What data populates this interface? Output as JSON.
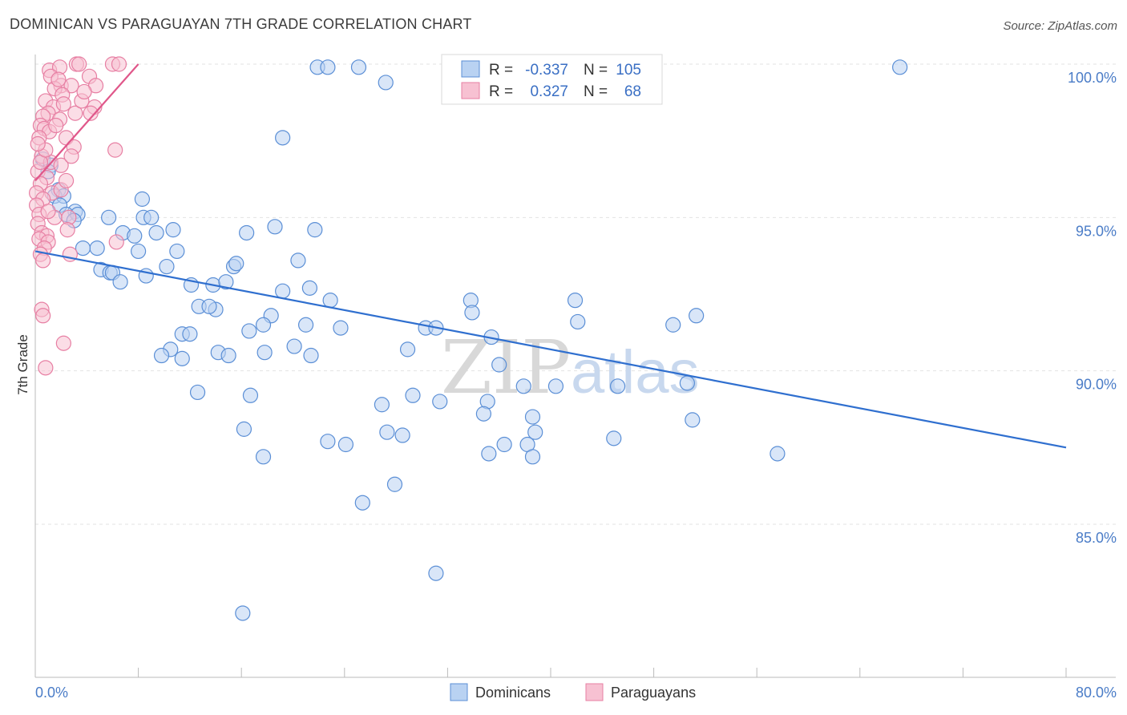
{
  "title": "DOMINICAN VS PARAGUAYAN 7TH GRADE CORRELATION CHART",
  "source": "Source: ZipAtlas.com",
  "colors": {
    "blue_fill": "#b9d2f2",
    "blue_stroke": "#5b8fd6",
    "blue_line": "#2f6fcf",
    "pink_fill": "#f7c1d2",
    "pink_stroke": "#e77fa3",
    "pink_line": "#e0578a",
    "grid": "#e3e3e3",
    "axis_label": "#4a7cc7"
  },
  "legend": {
    "row1": {
      "r_label": "R =",
      "r_value": "-0.337",
      "n_label": "N =",
      "n_value": "105"
    },
    "row2": {
      "r_label": "R =",
      "r_value": "0.327",
      "n_label": "N =",
      "n_value": "68"
    }
  },
  "bottom_legend": {
    "series1": "Dominicans",
    "series2": "Paraguayans"
  },
  "watermark": {
    "zip": "ZIP",
    "atlas": "atlas"
  },
  "chart_data": {
    "type": "scatter",
    "title": "DOMINICAN VS PARAGUAYAN 7TH GRADE CORRELATION CHART",
    "xlabel": "",
    "ylabel": "7th Grade",
    "xlim": [
      0,
      80
    ],
    "ylim": [
      80.5,
      101.0
    ],
    "x_tick_labels": [
      {
        "value": 0,
        "label": "0.0%"
      },
      {
        "value": 80,
        "label": "80.0%"
      }
    ],
    "y_tick_labels": [
      {
        "value": 100,
        "label": "100.0%"
      },
      {
        "value": 95,
        "label": "95.0%"
      },
      {
        "value": 90,
        "label": "90.0%"
      },
      {
        "value": 85,
        "label": "85.0%"
      }
    ],
    "grid": true,
    "legend_position": "top-center",
    "series": [
      {
        "name": "Dominicans",
        "r": -0.337,
        "n": 105,
        "trend": {
          "x0": 0,
          "y0": 93.9,
          "x1": 80,
          "y1": 87.5
        },
        "points": [
          [
            0.6,
            96.9
          ],
          [
            1.2,
            96.7
          ],
          [
            1.0,
            96.5
          ],
          [
            1.8,
            95.9
          ],
          [
            1.5,
            95.7
          ],
          [
            2.2,
            95.7
          ],
          [
            1.9,
            95.4
          ],
          [
            3.1,
            95.2
          ],
          [
            2.4,
            95.1
          ],
          [
            3.3,
            95.1
          ],
          [
            3.0,
            94.9
          ],
          [
            5.7,
            95.0
          ],
          [
            8.4,
            95.0
          ],
          [
            9.0,
            95.0
          ],
          [
            8.3,
            95.6
          ],
          [
            6.8,
            94.5
          ],
          [
            7.7,
            94.4
          ],
          [
            10.7,
            94.6
          ],
          [
            9.4,
            94.5
          ],
          [
            4.8,
            94.0
          ],
          [
            3.7,
            94.0
          ],
          [
            8.0,
            93.9
          ],
          [
            11.0,
            93.9
          ],
          [
            5.1,
            93.3
          ],
          [
            5.8,
            93.2
          ],
          [
            6.0,
            93.2
          ],
          [
            10.2,
            93.4
          ],
          [
            6.6,
            92.9
          ],
          [
            8.6,
            93.1
          ],
          [
            12.1,
            92.8
          ],
          [
            13.8,
            92.8
          ],
          [
            12.7,
            92.1
          ],
          [
            14.0,
            92.0
          ],
          [
            13.5,
            92.1
          ],
          [
            14.8,
            92.9
          ],
          [
            15.4,
            93.4
          ],
          [
            15.6,
            93.5
          ],
          [
            16.4,
            94.5
          ],
          [
            18.6,
            94.7
          ],
          [
            21.7,
            94.6
          ],
          [
            21.3,
            92.7
          ],
          [
            19.2,
            92.6
          ],
          [
            22.9,
            92.3
          ],
          [
            20.4,
            93.6
          ],
          [
            23.7,
            91.4
          ],
          [
            21.0,
            91.5
          ],
          [
            18.3,
            91.8
          ],
          [
            17.7,
            91.5
          ],
          [
            16.6,
            91.3
          ],
          [
            11.4,
            91.2
          ],
          [
            12.0,
            91.2
          ],
          [
            10.5,
            90.7
          ],
          [
            9.8,
            90.5
          ],
          [
            11.4,
            90.4
          ],
          [
            14.2,
            90.6
          ],
          [
            15.0,
            90.5
          ],
          [
            17.8,
            90.6
          ],
          [
            20.1,
            90.8
          ],
          [
            21.4,
            90.5
          ],
          [
            28.9,
            90.7
          ],
          [
            30.3,
            91.4
          ],
          [
            31.1,
            91.4
          ],
          [
            33.8,
            92.3
          ],
          [
            33.9,
            91.9
          ],
          [
            35.4,
            91.1
          ],
          [
            36.0,
            90.2
          ],
          [
            41.9,
            92.3
          ],
          [
            42.1,
            91.6
          ],
          [
            49.5,
            91.5
          ],
          [
            51.3,
            91.8
          ],
          [
            50.6,
            89.6
          ],
          [
            45.2,
            89.5
          ],
          [
            40.4,
            89.5
          ],
          [
            35.1,
            89.0
          ],
          [
            34.8,
            88.6
          ],
          [
            31.4,
            89.0
          ],
          [
            29.3,
            89.2
          ],
          [
            26.9,
            88.9
          ],
          [
            27.3,
            88.0
          ],
          [
            28.5,
            87.9
          ],
          [
            24.1,
            87.6
          ],
          [
            22.7,
            87.7
          ],
          [
            17.7,
            87.2
          ],
          [
            16.2,
            88.1
          ],
          [
            16.7,
            89.2
          ],
          [
            12.6,
            89.3
          ],
          [
            27.9,
            86.3
          ],
          [
            25.4,
            85.7
          ],
          [
            31.1,
            83.4
          ],
          [
            16.1,
            82.1
          ],
          [
            37.9,
            89.5
          ],
          [
            38.6,
            88.5
          ],
          [
            38.8,
            88.0
          ],
          [
            38.2,
            87.6
          ],
          [
            38.6,
            87.2
          ],
          [
            36.4,
            87.6
          ],
          [
            35.2,
            87.3
          ],
          [
            44.9,
            87.8
          ],
          [
            51.0,
            88.4
          ],
          [
            57.6,
            87.3
          ],
          [
            19.2,
            97.6
          ],
          [
            21.9,
            99.9
          ],
          [
            22.7,
            99.9
          ],
          [
            25.1,
            99.9
          ],
          [
            27.2,
            99.4
          ],
          [
            67.1,
            99.9
          ]
        ]
      },
      {
        "name": "Paraguayans",
        "r": 0.327,
        "n": 68,
        "trend": {
          "x0": 0,
          "y0": 96.2,
          "x1": 8,
          "y1": 100.0
        },
        "points": [
          [
            1.1,
            99.8
          ],
          [
            1.9,
            99.9
          ],
          [
            3.2,
            100.0
          ],
          [
            3.4,
            100.0
          ],
          [
            6.0,
            100.0
          ],
          [
            6.5,
            100.0
          ],
          [
            1.2,
            99.6
          ],
          [
            2.0,
            99.3
          ],
          [
            2.8,
            99.3
          ],
          [
            4.2,
            99.6
          ],
          [
            4.7,
            99.3
          ],
          [
            1.5,
            99.2
          ],
          [
            2.1,
            99.0
          ],
          [
            0.8,
            98.8
          ],
          [
            1.4,
            98.6
          ],
          [
            2.2,
            98.7
          ],
          [
            4.6,
            98.6
          ],
          [
            4.3,
            98.4
          ],
          [
            1.0,
            98.4
          ],
          [
            0.6,
            98.3
          ],
          [
            1.9,
            98.2
          ],
          [
            3.1,
            98.4
          ],
          [
            0.4,
            98.0
          ],
          [
            0.7,
            97.9
          ],
          [
            1.1,
            97.8
          ],
          [
            2.4,
            97.6
          ],
          [
            0.3,
            97.6
          ],
          [
            3.0,
            97.3
          ],
          [
            6.2,
            97.2
          ],
          [
            0.5,
            97.0
          ],
          [
            1.2,
            96.8
          ],
          [
            2.0,
            96.7
          ],
          [
            0.2,
            96.5
          ],
          [
            0.9,
            96.3
          ],
          [
            0.4,
            96.1
          ],
          [
            0.1,
            95.8
          ],
          [
            1.3,
            95.8
          ],
          [
            2.0,
            95.9
          ],
          [
            0.6,
            95.6
          ],
          [
            0.1,
            95.4
          ],
          [
            0.3,
            95.1
          ],
          [
            1.5,
            95.0
          ],
          [
            2.6,
            95.0
          ],
          [
            0.2,
            94.8
          ],
          [
            0.5,
            94.5
          ],
          [
            0.9,
            94.4
          ],
          [
            2.5,
            94.6
          ],
          [
            0.3,
            94.3
          ],
          [
            1.0,
            94.2
          ],
          [
            6.3,
            94.2
          ],
          [
            0.7,
            94.0
          ],
          [
            0.4,
            93.8
          ],
          [
            2.7,
            93.8
          ],
          [
            0.5,
            92.0
          ],
          [
            0.6,
            91.8
          ],
          [
            2.2,
            90.9
          ],
          [
            0.8,
            90.1
          ],
          [
            0.4,
            96.8
          ],
          [
            0.8,
            97.2
          ],
          [
            1.6,
            98.0
          ],
          [
            2.8,
            97.0
          ],
          [
            3.6,
            98.8
          ],
          [
            1.8,
            99.5
          ],
          [
            0.2,
            97.4
          ],
          [
            1.0,
            95.2
          ],
          [
            2.4,
            96.2
          ],
          [
            0.6,
            93.6
          ],
          [
            3.8,
            99.1
          ]
        ]
      }
    ]
  }
}
